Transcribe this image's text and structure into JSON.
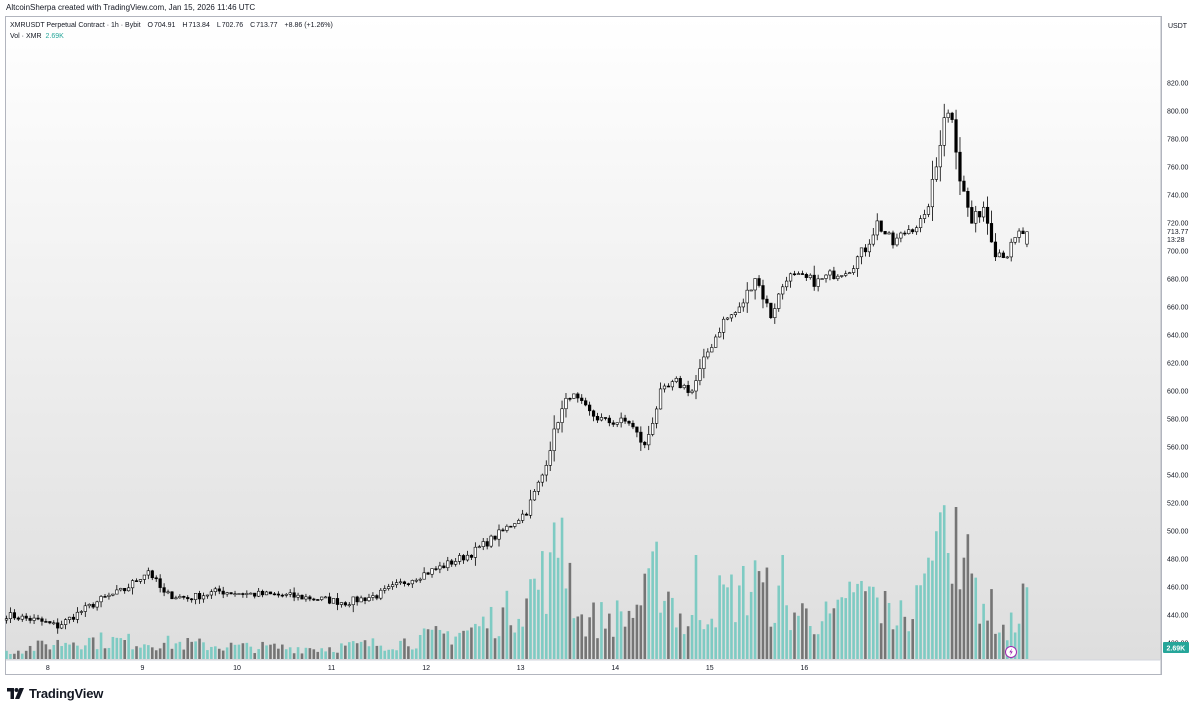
{
  "header": {
    "creator_line": "AltcoinSherpa created with TradingView.com, Jan 15, 2026 11:46 UTC"
  },
  "legend": {
    "symbol": "XMRUSDT Perpetual Contract · 1h · Bybit",
    "o_label": "O",
    "o": "704.91",
    "h_label": "H",
    "h": "713.84",
    "l_label": "L",
    "l": "702.76",
    "c_label": "C",
    "c": "713.77",
    "change": "+8.86 (+1.26%)",
    "vol_label": "Vol · XMR",
    "vol_value": "2.69K"
  },
  "axis": {
    "unit": "USDT",
    "last_price": "713.77",
    "countdown": "13:28",
    "vol_badge": "2.69K"
  },
  "footer": {
    "brand": "TradingView"
  },
  "colors": {
    "bull_body": "#ffffff",
    "bear_body": "#000000",
    "wick": "#000000",
    "vol_up": "#7ecbc3",
    "vol_down": "#757575",
    "bg_top": "#ffffff",
    "bg_bottom": "#dedede"
  },
  "chart_data": {
    "type": "candlestick",
    "interval": "1h",
    "y_ticks": [
      420,
      440,
      460,
      480,
      500,
      520,
      540,
      560,
      580,
      600,
      620,
      640,
      660,
      680,
      700,
      720,
      740,
      760,
      780,
      800,
      820
    ],
    "x_ticks": [
      "8",
      "9",
      "10",
      "11",
      "12",
      "13",
      "14",
      "15",
      "16"
    ],
    "anchors": [
      {
        "i": 0,
        "p": 440
      },
      {
        "i": 8,
        "p": 436
      },
      {
        "i": 13,
        "p": 432
      },
      {
        "i": 18,
        "p": 441
      },
      {
        "i": 24,
        "p": 451
      },
      {
        "i": 30,
        "p": 458
      },
      {
        "i": 36,
        "p": 472
      },
      {
        "i": 40,
        "p": 455
      },
      {
        "i": 46,
        "p": 452
      },
      {
        "i": 54,
        "p": 457
      },
      {
        "i": 62,
        "p": 455
      },
      {
        "i": 70,
        "p": 454
      },
      {
        "i": 78,
        "p": 452
      },
      {
        "i": 86,
        "p": 449
      },
      {
        "i": 94,
        "p": 454
      },
      {
        "i": 102,
        "p": 465
      },
      {
        "i": 110,
        "p": 474
      },
      {
        "i": 118,
        "p": 484
      },
      {
        "i": 126,
        "p": 500
      },
      {
        "i": 132,
        "p": 514
      },
      {
        "i": 136,
        "p": 540
      },
      {
        "i": 140,
        "p": 580
      },
      {
        "i": 143,
        "p": 598
      },
      {
        "i": 148,
        "p": 584
      },
      {
        "i": 152,
        "p": 578
      },
      {
        "i": 158,
        "p": 578
      },
      {
        "i": 162,
        "p": 560
      },
      {
        "i": 166,
        "p": 598
      },
      {
        "i": 170,
        "p": 606
      },
      {
        "i": 174,
        "p": 600
      },
      {
        "i": 178,
        "p": 628
      },
      {
        "i": 182,
        "p": 650
      },
      {
        "i": 186,
        "p": 658
      },
      {
        "i": 190,
        "p": 682
      },
      {
        "i": 194,
        "p": 654
      },
      {
        "i": 198,
        "p": 682
      },
      {
        "i": 202,
        "p": 680
      },
      {
        "i": 206,
        "p": 678
      },
      {
        "i": 210,
        "p": 684
      },
      {
        "i": 214,
        "p": 688
      },
      {
        "i": 218,
        "p": 702
      },
      {
        "i": 221,
        "p": 720
      },
      {
        "i": 225,
        "p": 705
      },
      {
        "i": 229,
        "p": 716
      },
      {
        "i": 233,
        "p": 722
      },
      {
        "i": 236,
        "p": 760
      },
      {
        "i": 238,
        "p": 798
      },
      {
        "i": 240,
        "p": 797
      },
      {
        "i": 242,
        "p": 752
      },
      {
        "i": 245,
        "p": 720
      },
      {
        "i": 248,
        "p": 732
      },
      {
        "i": 251,
        "p": 700
      },
      {
        "i": 254,
        "p": 698
      },
      {
        "i": 257,
        "p": 712
      },
      {
        "i": 259,
        "p": 713.77
      }
    ],
    "volume_scale": [
      0,
      6000
    ],
    "volume_anchors": [
      {
        "i": 0,
        "v": 300
      },
      {
        "i": 18,
        "v": 800
      },
      {
        "i": 36,
        "v": 700
      },
      {
        "i": 60,
        "v": 500
      },
      {
        "i": 80,
        "v": 450
      },
      {
        "i": 100,
        "v": 700
      },
      {
        "i": 118,
        "v": 1200
      },
      {
        "i": 128,
        "v": 2000
      },
      {
        "i": 137,
        "v": 3500
      },
      {
        "i": 141,
        "v": 4800
      },
      {
        "i": 146,
        "v": 1600
      },
      {
        "i": 158,
        "v": 1800
      },
      {
        "i": 166,
        "v": 3500
      },
      {
        "i": 172,
        "v": 1400
      },
      {
        "i": 180,
        "v": 2400
      },
      {
        "i": 190,
        "v": 3000
      },
      {
        "i": 198,
        "v": 2000
      },
      {
        "i": 210,
        "v": 1600
      },
      {
        "i": 218,
        "v": 2800
      },
      {
        "i": 228,
        "v": 1300
      },
      {
        "i": 235,
        "v": 3500
      },
      {
        "i": 238,
        "v": 5200
      },
      {
        "i": 242,
        "v": 4000
      },
      {
        "i": 248,
        "v": 2500
      },
      {
        "i": 254,
        "v": 1000
      },
      {
        "i": 259,
        "v": 2690
      }
    ],
    "volume_spikes": [
      {
        "i": 138,
        "v": 4000
      },
      {
        "i": 141,
        "v": 5300
      },
      {
        "i": 162,
        "v": 3200
      },
      {
        "i": 165,
        "v": 4400
      },
      {
        "i": 175,
        "v": 3900
      },
      {
        "i": 190,
        "v": 3700
      },
      {
        "i": 197,
        "v": 3900
      },
      {
        "i": 214,
        "v": 2900
      },
      {
        "i": 227,
        "v": 2200
      },
      {
        "i": 234,
        "v": 3800
      },
      {
        "i": 237,
        "v": 5500
      },
      {
        "i": 241,
        "v": 5700
      },
      {
        "i": 243,
        "v": 3800
      }
    ]
  }
}
